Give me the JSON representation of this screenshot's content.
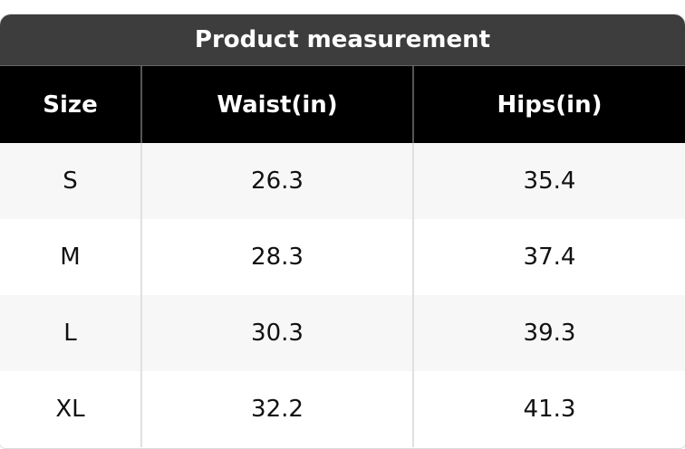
{
  "header": {
    "title": "Product measurement"
  },
  "table": {
    "columns": [
      "Size",
      "Waist(in)",
      "Hips(in)"
    ],
    "rows": [
      [
        "S",
        "26.3",
        "35.4"
      ],
      [
        "M",
        "28.3",
        "37.4"
      ],
      [
        "L",
        "30.3",
        "39.3"
      ],
      [
        "XL",
        "32.2",
        "41.3"
      ]
    ]
  }
}
